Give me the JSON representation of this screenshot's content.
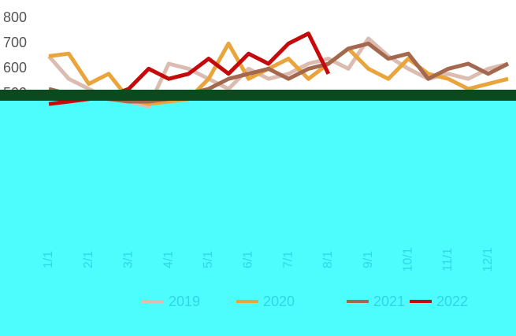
{
  "chart_data": {
    "type": "line",
    "categories": [
      "1/1",
      null,
      "2/1",
      null,
      "3/1",
      null,
      "4/1",
      null,
      "5/1",
      null,
      "6/1",
      null,
      "7/1",
      null,
      "8/1",
      null,
      "9/1",
      null,
      "10/1",
      null,
      "11/1",
      null,
      "12/1",
      null
    ],
    "ylim": [
      0,
      820
    ],
    "yticks": [
      500,
      600,
      700,
      800
    ],
    "series": [
      {
        "name": "2019",
        "color": "#dcbcb0",
        "values": [
          650,
          560,
          520,
          480,
          470,
          450,
          620,
          600,
          560,
          520,
          600,
          560,
          580,
          620,
          640,
          600,
          720,
          650,
          600,
          560,
          580,
          560,
          600,
          620
        ]
      },
      {
        "name": "2020",
        "color": "#e9a43c",
        "values": [
          650,
          660,
          540,
          580,
          480,
          460,
          470,
          480,
          560,
          700,
          560,
          600,
          640,
          560,
          620,
          680,
          600,
          560,
          640,
          580,
          560,
          520,
          540,
          560
        ]
      },
      {
        "name": "2021",
        "color": "#a4684e",
        "values": [
          520,
          500,
          490,
          480,
          470,
          470,
          480,
          500,
          520,
          560,
          580,
          600,
          560,
          600,
          620,
          680,
          700,
          640,
          660,
          560,
          600,
          620,
          580,
          620
        ]
      },
      {
        "name": "2022",
        "color": "#c40a0a",
        "values": [
          460,
          470,
          480,
          490,
          520,
          600,
          560,
          580,
          640,
          580,
          660,
          620,
          700,
          740,
          580,
          null,
          null,
          null,
          null,
          null,
          null,
          null,
          null,
          null
        ]
      }
    ]
  }
}
